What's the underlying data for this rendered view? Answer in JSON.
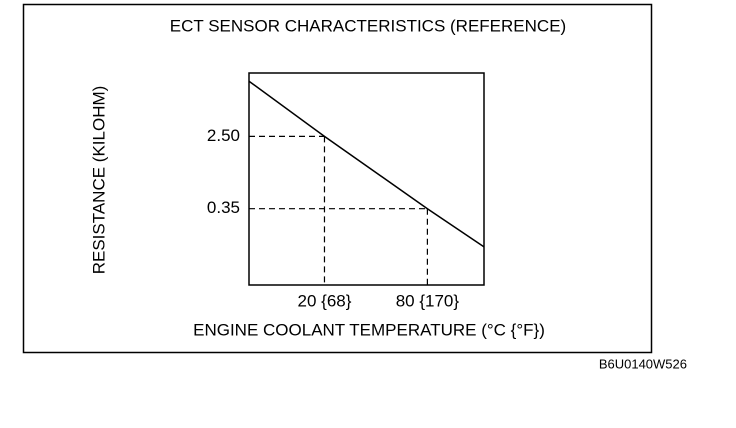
{
  "chart_data": {
    "type": "line",
    "title": "ECT SENSOR CHARACTERISTICS (REFERENCE)",
    "x_label": "ENGINE COOLANT TEMPERATURE (°C {°F})",
    "y_label": "RESISTANCE (KILOHM)",
    "x": [
      -24,
      20,
      80,
      113
    ],
    "values": [
      11.2,
      2.5,
      0.35,
      0.124
    ],
    "color": "#000000",
    "xlim": [
      -24,
      113
    ],
    "xticks": [
      {
        "value": 20,
        "label": "20 {68}"
      },
      {
        "value": 80,
        "label": "80 {170}"
      }
    ],
    "ylim": [
      0.044,
      14
    ],
    "yticks": [
      {
        "value": 2.5,
        "label": "2.50"
      },
      {
        "value": 0.35,
        "label": "0.35"
      }
    ],
    "ylog": true,
    "reference_lines": true
  },
  "figure_code": "B6U0140W526"
}
